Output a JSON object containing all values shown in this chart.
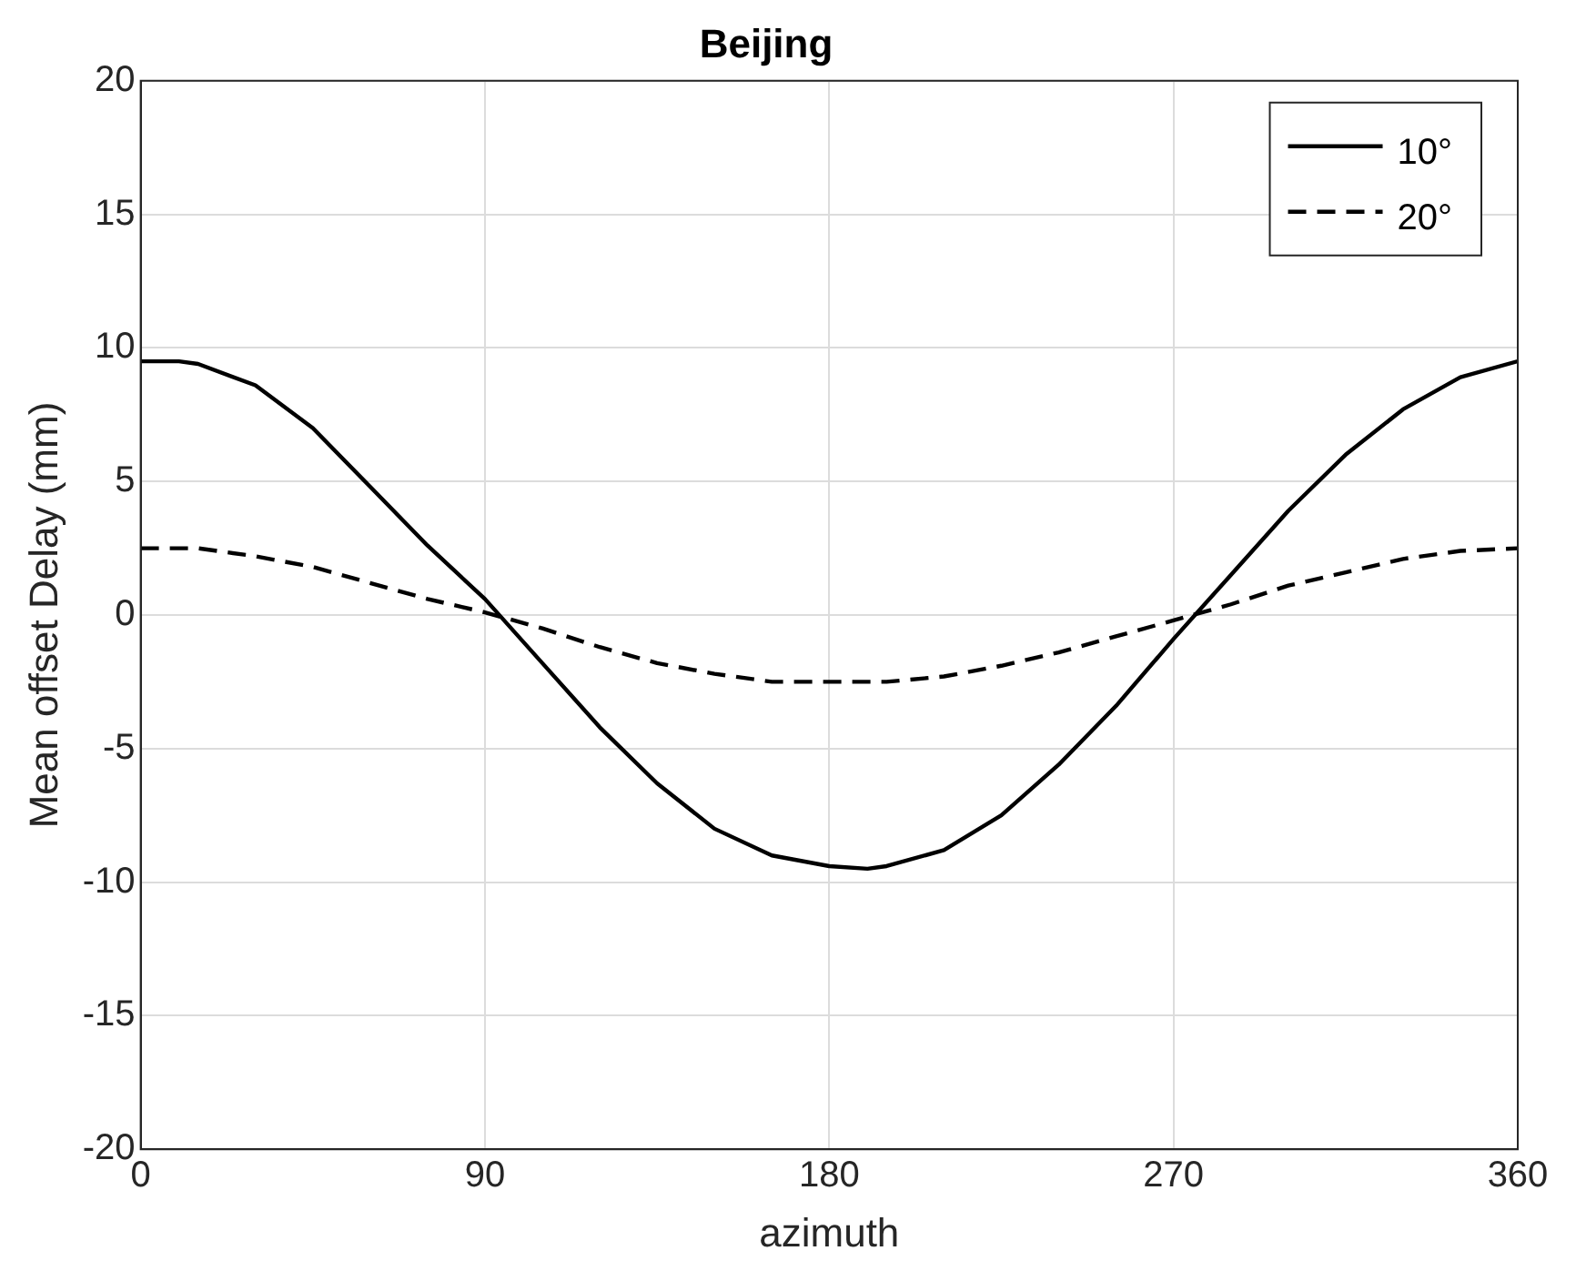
{
  "chart_data": {
    "type": "line",
    "title": "Beijing",
    "xlabel": "azimuth",
    "ylabel": "Mean offset Delay (mm)",
    "xlim": [
      0,
      360
    ],
    "xticks": [
      0,
      90,
      180,
      270,
      360
    ],
    "ylim": [
      -20,
      20
    ],
    "yticks": [
      -20,
      -15,
      -10,
      -5,
      0,
      5,
      10,
      15,
      20
    ],
    "grid": true,
    "legend": "top right",
    "marker": "none",
    "series": [
      {
        "name": "10°",
        "color": "#000000",
        "line_style": "solid",
        "x": [
          0,
          10,
          15,
          30,
          45,
          60,
          75,
          90,
          105,
          120,
          135,
          150,
          165,
          180,
          190,
          195,
          210,
          225,
          240,
          255,
          270,
          285,
          300,
          315,
          330,
          345,
          360
        ],
        "values": [
          9.5,
          9.5,
          9.4,
          8.6,
          7.0,
          4.8,
          2.6,
          0.6,
          -1.8,
          -4.2,
          -6.3,
          -8.0,
          -9.0,
          -9.4,
          -9.5,
          -9.4,
          -8.8,
          -7.5,
          -5.6,
          -3.4,
          -0.9,
          1.5,
          3.9,
          6.0,
          7.7,
          8.9,
          9.5
        ]
      },
      {
        "name": "20°",
        "color": "#000000",
        "line_style": "dashed",
        "x": [
          0,
          15,
          30,
          45,
          60,
          75,
          90,
          105,
          120,
          135,
          150,
          165,
          180,
          195,
          210,
          225,
          240,
          255,
          270,
          285,
          300,
          315,
          330,
          345,
          360
        ],
        "values": [
          2.5,
          2.5,
          2.2,
          1.8,
          1.2,
          0.6,
          0.1,
          -0.5,
          -1.2,
          -1.8,
          -2.2,
          -2.5,
          -2.5,
          -2.5,
          -2.3,
          -1.9,
          -1.4,
          -0.8,
          -0.2,
          0.4,
          1.1,
          1.6,
          2.1,
          2.4,
          2.5
        ]
      }
    ]
  }
}
